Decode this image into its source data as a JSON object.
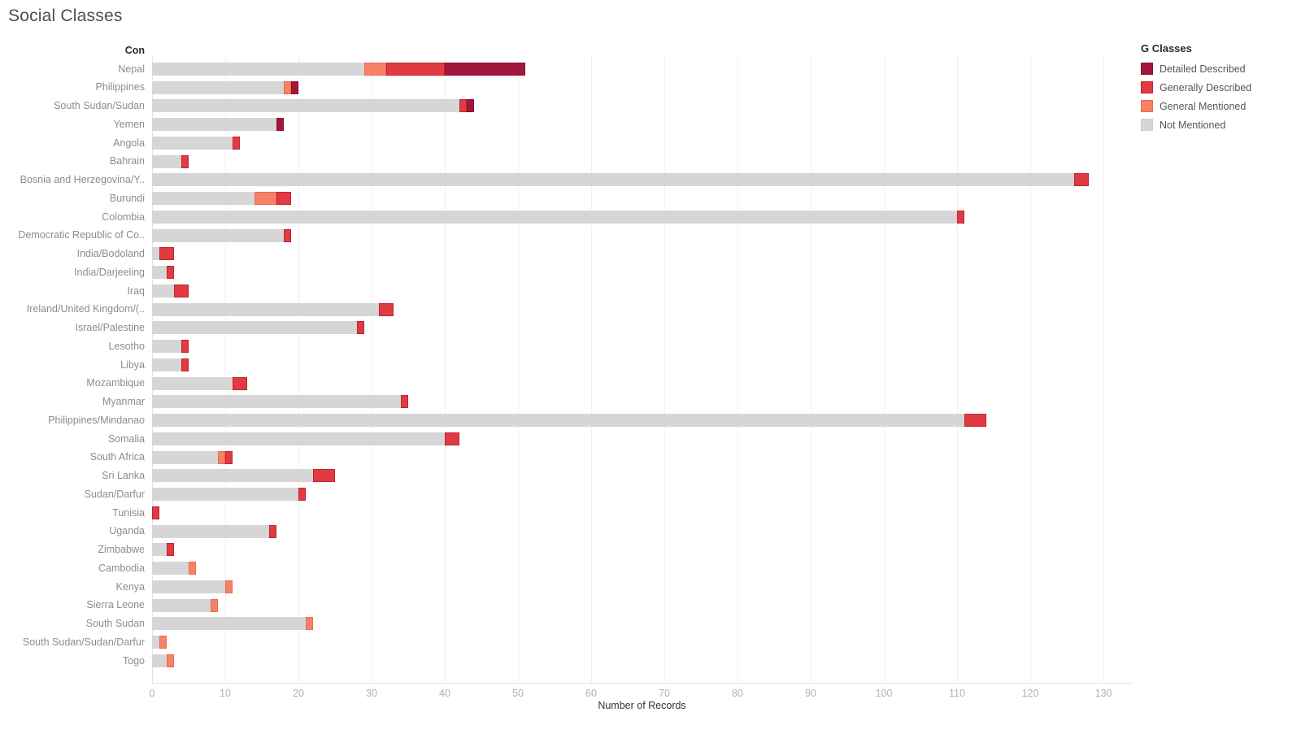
{
  "title": "Social Classes",
  "row_header": "Con",
  "axis": {
    "label": "Number of Records",
    "ticks": [
      0,
      10,
      20,
      30,
      40,
      50,
      60,
      70,
      80,
      90,
      100,
      110,
      120,
      130
    ]
  },
  "legend": {
    "title": "G Classes",
    "items": [
      {
        "label": "Detailed Described",
        "color": "#a2183c",
        "border": "#8c1031"
      },
      {
        "label": "Generally Described",
        "color": "#e13b42",
        "border": "#c22333"
      },
      {
        "label": "General Mentioned",
        "color": "#f58267",
        "border": "#ed6a4f"
      },
      {
        "label": "Not Mentioned",
        "color": "#d6d6d6",
        "border": "#d0d0d0"
      }
    ]
  },
  "chart_data": {
    "type": "bar",
    "orientation": "horizontal",
    "stacked": true,
    "title": "Social Classes",
    "xlabel": "Number of Records",
    "xlim": [
      0,
      134
    ],
    "grid": true,
    "legend_position": "top-right",
    "categories": [
      "Nepal",
      "Philippines",
      "South Sudan/Sudan",
      "Yemen",
      "Angola",
      "Bahrain",
      "Bosnia and Herzegovina/Y..",
      "Burundi",
      "Colombia",
      "Democratic Republic of Co..",
      "India/Bodoland",
      "India/Darjeeling",
      "Iraq",
      "Ireland/United Kingdom/(..",
      "Israel/Palestine",
      "Lesotho",
      "Libya",
      "Mozambique",
      "Myanmar",
      "Philippines/Mindanao",
      "Somalia",
      "South Africa",
      "Sri Lanka",
      "Sudan/Darfur",
      "Tunisia",
      "Uganda",
      "Zimbabwe",
      "Cambodia",
      "Kenya",
      "Sierra Leone",
      "South Sudan",
      "South Sudan/Sudan/Darfur",
      "Togo"
    ],
    "series": [
      {
        "name": "Not Mentioned",
        "color": "#d6d6d6",
        "border": "#d6d6d6",
        "values": [
          29,
          18,
          42,
          17,
          11,
          4,
          126,
          14,
          110,
          18,
          1,
          2,
          3,
          31,
          28,
          4,
          4,
          11,
          34,
          111,
          40,
          9,
          22,
          20,
          0,
          16,
          2,
          5,
          10,
          8,
          21,
          1,
          2
        ]
      },
      {
        "name": "General Mentioned",
        "color": "#f58267",
        "border": "#ed6a4f",
        "values": [
          3,
          1,
          0,
          0,
          0,
          0,
          0,
          3,
          0,
          0,
          0,
          0,
          0,
          0,
          0,
          0,
          0,
          0,
          0,
          0,
          0,
          1,
          0,
          0,
          0,
          0,
          0,
          1,
          1,
          1,
          1,
          1,
          1
        ]
      },
      {
        "name": "Generally Described",
        "color": "#e13b42",
        "border": "#c22333",
        "values": [
          8,
          0,
          1,
          0,
          1,
          1,
          2,
          2,
          1,
          1,
          2,
          1,
          2,
          2,
          1,
          1,
          1,
          2,
          1,
          3,
          2,
          1,
          3,
          1,
          1,
          1,
          1,
          0,
          0,
          0,
          0,
          0,
          0
        ]
      },
      {
        "name": "Detailed Described",
        "color": "#a2183c",
        "border": "#8c1031",
        "values": [
          11,
          1,
          1,
          1,
          0,
          0,
          0,
          0,
          0,
          0,
          0,
          0,
          0,
          0,
          0,
          0,
          0,
          0,
          0,
          0,
          0,
          0,
          0,
          0,
          0,
          0,
          0,
          0,
          0,
          0,
          0,
          0,
          0
        ]
      }
    ],
    "totals": [
      51,
      20,
      44,
      18,
      12,
      5,
      128,
      19,
      111,
      19,
      3,
      3,
      5,
      33,
      29,
      5,
      5,
      13,
      35,
      114,
      42,
      11,
      25,
      21,
      1,
      17,
      3,
      6,
      11,
      9,
      22,
      2,
      3
    ]
  }
}
